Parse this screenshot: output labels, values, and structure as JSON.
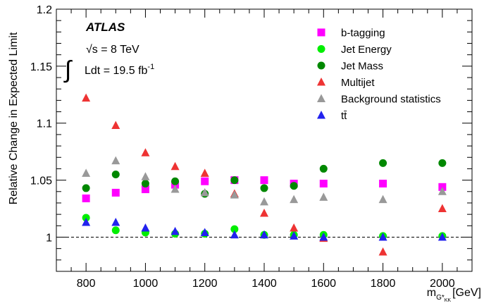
{
  "chart_data": {
    "type": "scatter",
    "experiment": "ATLAS",
    "energy_label": "√s = 8 TeV",
    "lumi_label": "Ldt = 19.5 fb",
    "lumi_exponent": "-1",
    "integral_symbol": "∫",
    "ylabel": "Relative Change in Expected Limit",
    "xlabel_main": "m",
    "xlabel_sub": "G*",
    "xlabel_subsub": "KK",
    "xlabel_unit": "[GeV]",
    "xlim": [
      700,
      2100
    ],
    "ylim": [
      0.97,
      1.2
    ],
    "x_ticks": [
      800,
      1000,
      1200,
      1400,
      1600,
      1800,
      2000
    ],
    "y_ticks": [
      1,
      1.05,
      1.1,
      1.15,
      1.2
    ],
    "y_tick_labels": [
      "1",
      "1.05",
      "1.1",
      "1.15",
      "1.2"
    ],
    "reference_line": 1.0,
    "legend_position": "top-right",
    "series": [
      {
        "name": "b-tagging",
        "marker": "square",
        "color": "#ff00ff",
        "x": [
          800,
          900,
          1000,
          1100,
          1200,
          1300,
          1400,
          1500,
          1600,
          1800,
          2000
        ],
        "y": [
          1.034,
          1.039,
          1.042,
          1.046,
          1.049,
          1.05,
          1.05,
          1.047,
          1.047,
          1.047,
          1.044
        ]
      },
      {
        "name": "Jet Energy",
        "marker": "circle",
        "color": "#00ee00",
        "x": [
          800,
          900,
          1000,
          1100,
          1200,
          1300,
          1400,
          1500,
          1600,
          1800,
          2000
        ],
        "y": [
          1.017,
          1.006,
          1.004,
          1.003,
          1.003,
          1.007,
          1.002,
          1.002,
          1.002,
          1.001,
          1.001
        ]
      },
      {
        "name": "Jet Mass",
        "marker": "circle",
        "color": "#008800",
        "x": [
          800,
          900,
          1000,
          1100,
          1200,
          1300,
          1400,
          1500,
          1600,
          1800,
          2000
        ],
        "y": [
          1.043,
          1.055,
          1.047,
          1.049,
          1.038,
          1.05,
          1.043,
          1.045,
          1.06,
          1.065,
          1.065
        ]
      },
      {
        "name": "Multijet",
        "marker": "triangle",
        "color": "#ee3333",
        "x": [
          800,
          900,
          1000,
          1100,
          1200,
          1300,
          1400,
          1500,
          1600,
          1800,
          2000
        ],
        "y": [
          1.122,
          1.098,
          1.074,
          1.062,
          1.056,
          1.038,
          1.021,
          1.008,
          0.999,
          0.987,
          1.025
        ]
      },
      {
        "name": "Background statistics",
        "marker": "triangle",
        "color": "#999999",
        "x": [
          800,
          900,
          1000,
          1100,
          1200,
          1300,
          1400,
          1500,
          1600,
          1800,
          2000
        ],
        "y": [
          1.056,
          1.067,
          1.053,
          1.042,
          1.039,
          1.037,
          1.031,
          1.033,
          1.035,
          1.033,
          1.04
        ]
      },
      {
        "name": "tt̄",
        "marker": "triangle",
        "color": "#2222ee",
        "x": [
          800,
          900,
          1000,
          1100,
          1200,
          1300,
          1400,
          1500,
          1600,
          1800,
          2000
        ],
        "y": [
          1.013,
          1.013,
          1.008,
          1.005,
          1.004,
          1.002,
          1.002,
          1.001,
          1.0,
          1.0,
          1.0
        ]
      }
    ]
  }
}
